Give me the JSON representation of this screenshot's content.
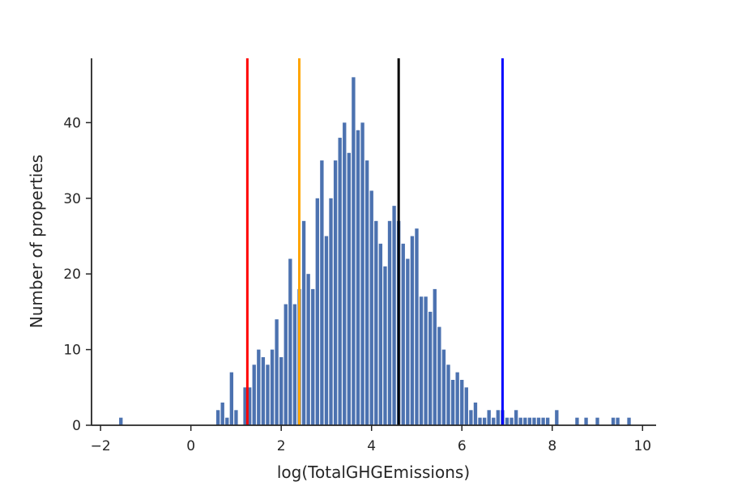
{
  "chart_data": {
    "type": "bar",
    "title": "",
    "xlabel": "log(TotalGHGEmissions)",
    "ylabel": "Number of properties",
    "xlim": [
      -2.2,
      10.3
    ],
    "ylim": [
      0,
      48.5
    ],
    "x_ticks": [
      -2,
      0,
      2,
      4,
      6,
      8,
      10
    ],
    "x_tick_labels": [
      "−2",
      "0",
      "2",
      "4",
      "6",
      "8",
      "10"
    ],
    "y_ticks": [
      0,
      10,
      20,
      30,
      40
    ],
    "y_tick_labels": [
      "0",
      "10",
      "20",
      "30",
      "40"
    ],
    "grid": false,
    "bar_color": "#4c72b0",
    "bin_width": 0.1,
    "series": [
      {
        "x": [
          -1.55,
          0.6,
          0.7,
          0.8,
          0.9,
          1.0,
          1.2,
          1.3,
          1.4,
          1.5,
          1.6,
          1.7,
          1.8,
          1.9,
          2.0,
          2.1,
          2.2,
          2.3,
          2.4,
          2.5,
          2.6,
          2.7,
          2.8,
          2.9,
          3.0,
          3.1,
          3.2,
          3.3,
          3.4,
          3.5,
          3.6,
          3.7,
          3.8,
          3.9,
          4.0,
          4.1,
          4.2,
          4.3,
          4.4,
          4.5,
          4.6,
          4.7,
          4.8,
          4.9,
          5.0,
          5.1,
          5.2,
          5.3,
          5.4,
          5.5,
          5.6,
          5.7,
          5.8,
          5.9,
          6.0,
          6.1,
          6.2,
          6.3,
          6.4,
          6.5,
          6.6,
          6.7,
          6.8,
          6.9,
          7.0,
          7.1,
          7.2,
          7.3,
          7.4,
          7.5,
          7.6,
          7.7,
          7.8,
          7.9,
          8.1,
          8.55,
          8.75,
          9.0,
          9.35,
          9.45,
          9.7
        ],
        "values": [
          1,
          2,
          3,
          1,
          7,
          2,
          5,
          5,
          8,
          10,
          9,
          8,
          10,
          14,
          9,
          16,
          22,
          16,
          18,
          27,
          20,
          18,
          30,
          35,
          25,
          30,
          35,
          38,
          40,
          36,
          46,
          39,
          40,
          35,
          31,
          27,
          24,
          21,
          27,
          29,
          27,
          24,
          22,
          25,
          26,
          17,
          17,
          15,
          18,
          13,
          10,
          8,
          6,
          7,
          6,
          5,
          2,
          3,
          1,
          1,
          2,
          1,
          2,
          2,
          1,
          1,
          2,
          1,
          1,
          1,
          1,
          1,
          1,
          1,
          2,
          1,
          1,
          1,
          1,
          1,
          1
        ]
      }
    ],
    "vertical_lines": [
      {
        "x": 1.25,
        "color": "#ff0000"
      },
      {
        "x": 2.4,
        "color": "#ffa500"
      },
      {
        "x": 4.6,
        "color": "#000000"
      },
      {
        "x": 6.9,
        "color": "#0000ff"
      }
    ]
  }
}
